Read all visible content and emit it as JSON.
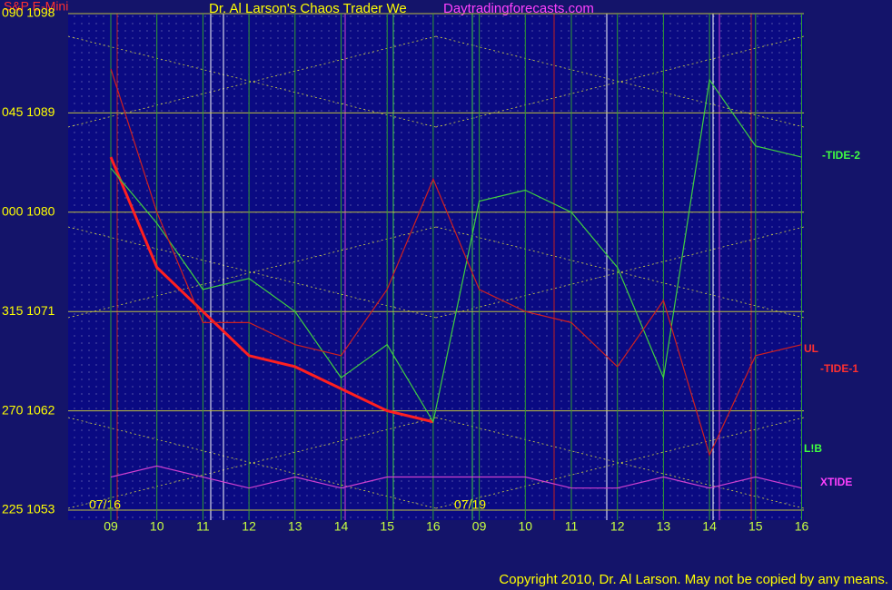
{
  "chart_data": {
    "type": "line",
    "title": "Dr. Al Larson's Chaos Trader We",
    "subtitle": "S&P E-Mini",
    "site": "Daytradingforecasts.com",
    "copyright": "Copyright 2010, Dr. Al Larson. May not be copied by any means.",
    "dates": [
      "07/16",
      "07/19"
    ],
    "categories": [
      "09",
      "10",
      "11",
      "12",
      "13",
      "14",
      "15",
      "16",
      "09",
      "10",
      "11",
      "12",
      "13",
      "14",
      "15",
      "16"
    ],
    "ylim": [
      1053,
      1098
    ],
    "yticks": [
      {
        "value": 1053,
        "label": "225 1053"
      },
      {
        "value": 1062,
        "label": "270 1062"
      },
      {
        "value": 1071,
        "label": "315 1071"
      },
      {
        "value": 1080,
        "label": "000 1080"
      },
      {
        "value": 1089,
        "label": "045 1089"
      },
      {
        "value": 1098,
        "label": "090 1098"
      }
    ],
    "grid": true,
    "series": [
      {
        "name": "S&P E-Mini",
        "color": "#ff2020",
        "values": [
          1085,
          1075,
          1071,
          1067,
          1066,
          1064,
          1062,
          1061,
          null,
          null,
          null,
          null,
          null,
          null,
          null,
          null
        ]
      },
      {
        "name": "TIDE-2",
        "color": "#40d040",
        "values": [
          1084,
          1079,
          1073,
          1074,
          1071,
          1065,
          1068,
          1061,
          1081,
          1082,
          1080,
          1075,
          1065,
          1092,
          1086,
          1085
        ]
      },
      {
        "name": "TIDE-1",
        "color": "#d02020",
        "values": [
          1093,
          1080,
          1070,
          1070,
          1068,
          1067,
          1073,
          1083,
          1073,
          1071,
          1070,
          1066,
          1072,
          1058,
          1067,
          1068
        ]
      },
      {
        "name": "XTIDE",
        "color": "#d040d0",
        "values": [
          1056,
          1057,
          1056,
          1055,
          1056,
          1055,
          1056,
          1056,
          1056,
          1056,
          1055,
          1055,
          1056,
          1055,
          1056,
          1055
        ]
      }
    ],
    "annotations": [
      "-TIDE-2",
      "-TIDE-1",
      "XTIDE",
      "L!B",
      "UL"
    ]
  }
}
